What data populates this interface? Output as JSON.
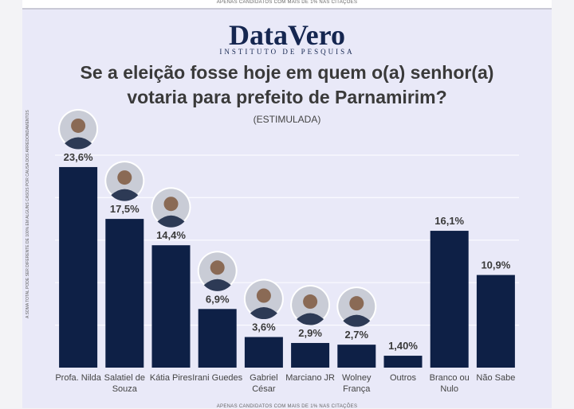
{
  "header": {
    "top_note": "APENAS CANDIDATOS COM MAIS DE 1% NAS CITAÇÕES",
    "logo": "DataVero",
    "logo_subtitle": "INSTITUTO DE PESQUISA",
    "side_note": "A SOMA TOTAL PODE SER DIFERENTE DE 100% EM ALGUNS CASOS POR CAUSA DOS ARREDONDAMENTOS",
    "bottom_note": "APENAS CANDIDATOS COM MAIS DE 1% NAS CITAÇÕES"
  },
  "chart_data": {
    "type": "bar",
    "title": "Se a eleição fosse hoje em quem o(a) senhor(a) votaria para prefeito de Parnamirim?",
    "subtitle": "(ESTIMULADA)",
    "categories": [
      "Profa. Nilda",
      "Salatiel de Souza",
      "Kátia Pires",
      "Irani Guedes",
      "Gabriel César",
      "Marciano JR",
      "Wolney França",
      "Outros",
      "Branco ou Nulo",
      "Não Sabe"
    ],
    "values": [
      23.6,
      17.5,
      14.4,
      6.9,
      3.6,
      2.9,
      2.7,
      1.4,
      16.1,
      10.9
    ],
    "value_labels": [
      "23,6%",
      "17,5%",
      "14,4%",
      "6,9%",
      "3,6%",
      "2,9%",
      "2,7%",
      "1,40%",
      "16,1%",
      "10,9%"
    ],
    "color": "#0e2046",
    "ylim": [
      0,
      25
    ],
    "yticks": [
      5,
      10,
      15,
      20,
      25
    ],
    "grid": true
  }
}
